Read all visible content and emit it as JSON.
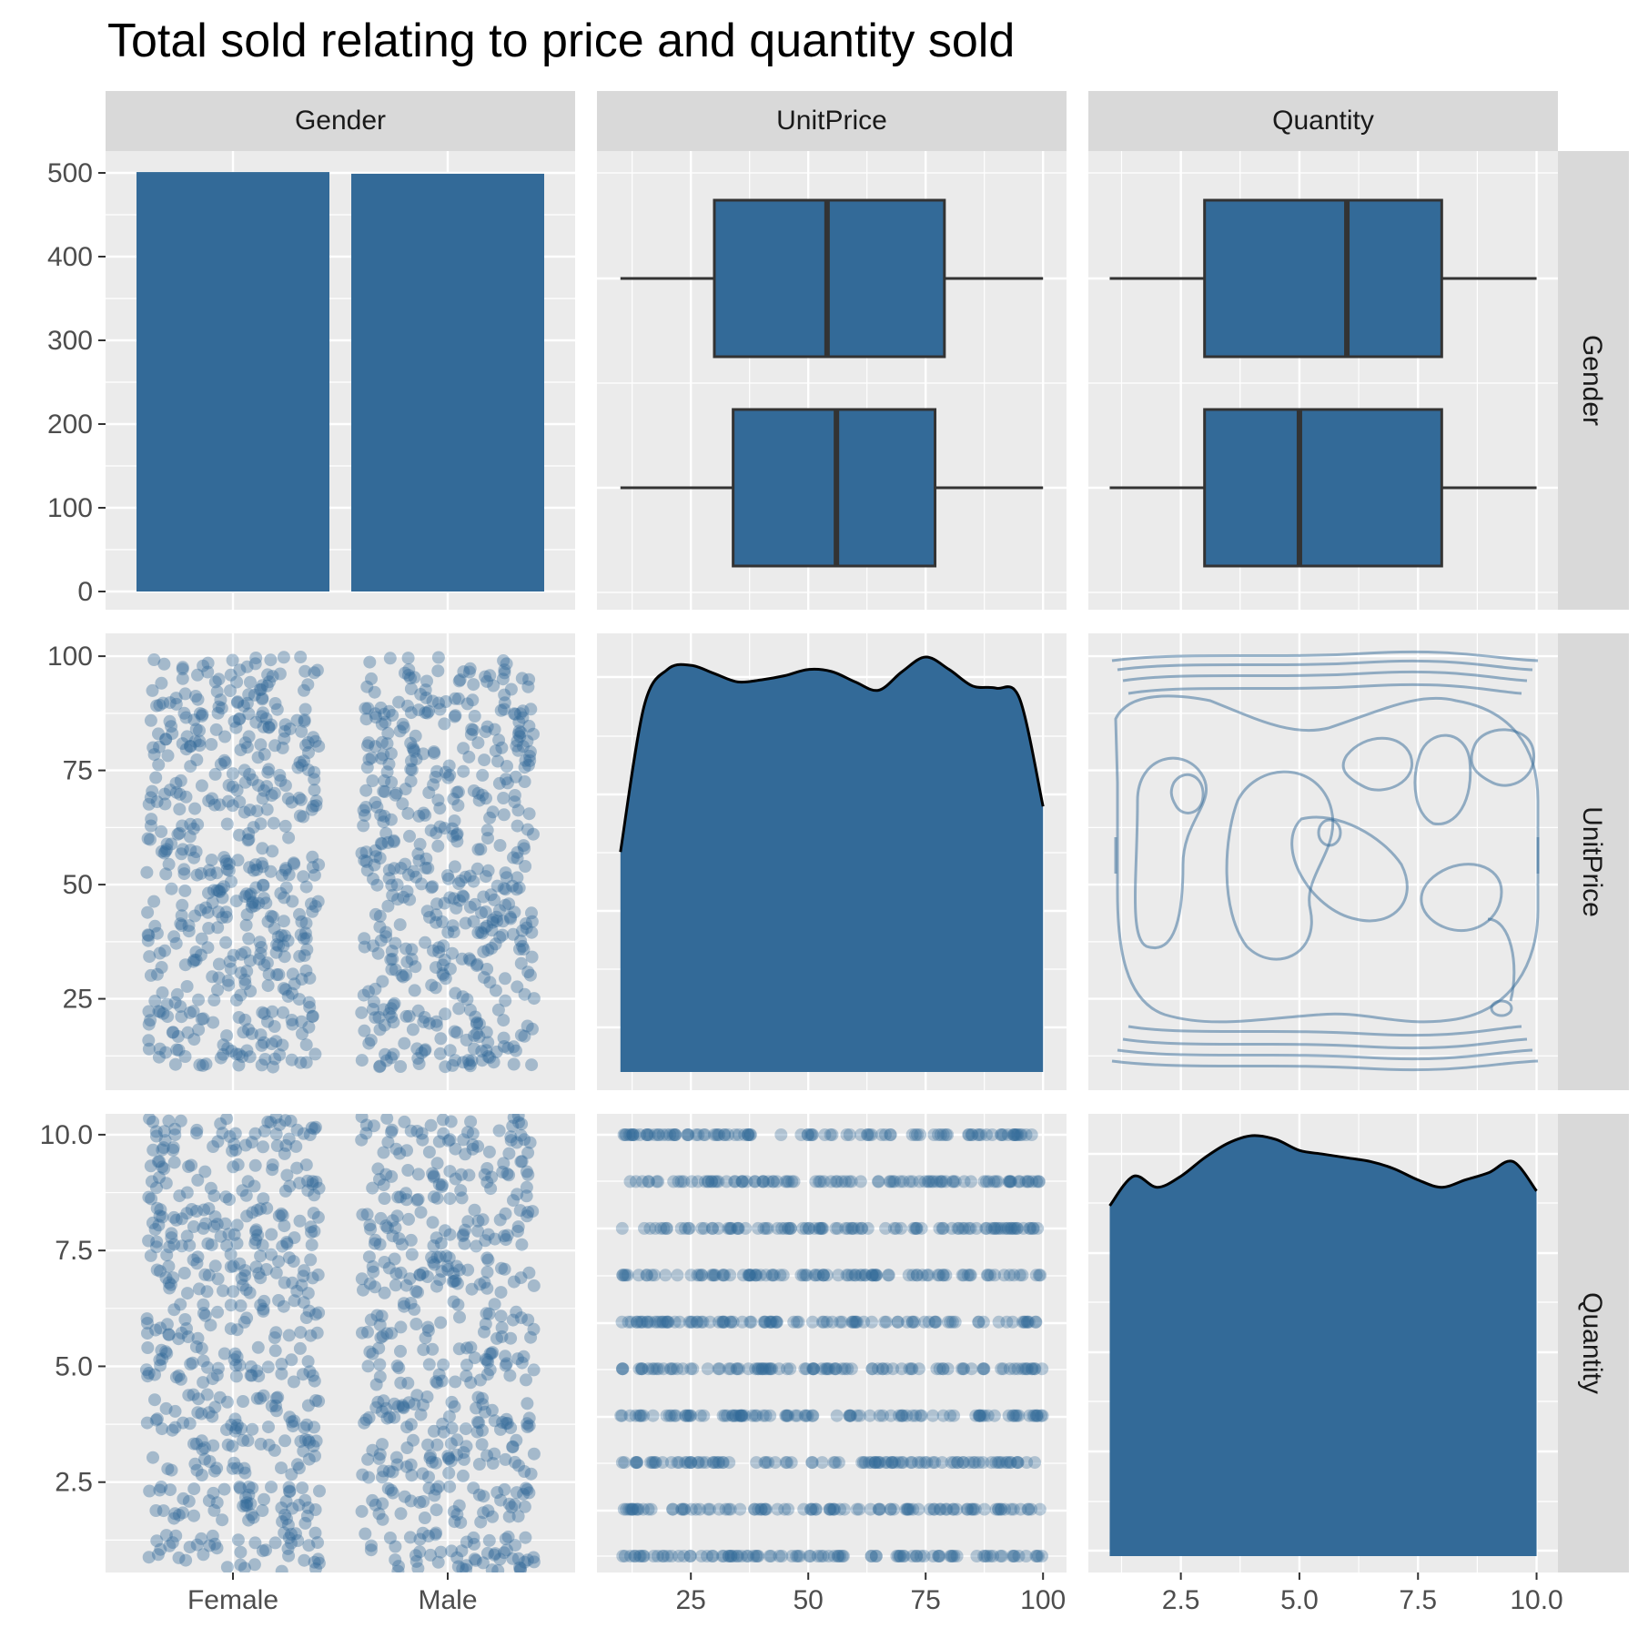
{
  "title": "Total sold relating to price and quantity sold",
  "variables": [
    "Gender",
    "UnitPrice",
    "Quantity"
  ],
  "colors": {
    "fill": "#336a98",
    "panel_bg": "#ebebeb",
    "strip_bg": "#d9d9d9",
    "grid": "#ffffff",
    "box_line": "#333333",
    "density_line": "#000000",
    "tick_text": "#4d4d4d"
  },
  "chart_data": [
    {
      "type": "bar",
      "panel": "Gender vs Gender",
      "categories": [
        "Female",
        "Male"
      ],
      "values": [
        501,
        499
      ],
      "yticks": [
        "0",
        "100",
        "200",
        "300",
        "400",
        "500"
      ],
      "ylim": [
        0,
        525
      ]
    },
    {
      "type": "boxplot",
      "panel": "UnitPrice by Gender",
      "series": [
        {
          "name": "Female",
          "min": 10,
          "q1": 34,
          "median": 56,
          "q3": 77,
          "max": 100
        },
        {
          "name": "Male",
          "min": 10,
          "q1": 30,
          "median": 54,
          "q3": 79,
          "max": 100
        }
      ],
      "xlim": [
        5,
        105
      ]
    },
    {
      "type": "boxplot",
      "panel": "Quantity by Gender",
      "series": [
        {
          "name": "Female",
          "min": 1,
          "q1": 3,
          "median": 5,
          "q3": 8,
          "max": 10
        },
        {
          "name": "Male",
          "min": 1,
          "q1": 3,
          "median": 6,
          "q3": 8,
          "max": 10
        }
      ],
      "xlim": [
        0.55,
        10.45
      ]
    },
    {
      "type": "scatter",
      "panel": "UnitPrice by Gender (jitter)",
      "categories": [
        "Female",
        "Male"
      ],
      "ylim": [
        5,
        105
      ],
      "yticks": [
        "25",
        "50",
        "75",
        "100"
      ],
      "n_points": [
        501,
        499
      ]
    },
    {
      "type": "area",
      "panel": "UnitPrice density",
      "x": [
        10,
        15,
        20,
        25,
        30,
        35,
        40,
        45,
        50,
        55,
        60,
        65,
        70,
        75,
        80,
        85,
        90,
        95,
        100
      ],
      "y": [
        0.53,
        0.88,
        0.97,
        0.98,
        0.96,
        0.94,
        0.945,
        0.955,
        0.97,
        0.965,
        0.94,
        0.92,
        0.965,
        1.0,
        0.97,
        0.93,
        0.925,
        0.9,
        0.64
      ],
      "xlim": [
        5,
        105
      ]
    },
    {
      "type": "contour",
      "panel": "UnitPrice vs Quantity density contours",
      "xlim": [
        0.55,
        10.45
      ],
      "ylim": [
        5,
        105
      ]
    },
    {
      "type": "scatter",
      "panel": "Quantity by Gender (jitter)",
      "categories": [
        "Female",
        "Male"
      ],
      "ylim": [
        0.55,
        10.45
      ],
      "yticks": [
        "2.5",
        "5.0",
        "7.5",
        "10.0"
      ],
      "n_points": [
        501,
        499
      ],
      "xticks": [
        "Female",
        "Male"
      ]
    },
    {
      "type": "scatter",
      "panel": "Quantity vs UnitPrice",
      "xlim": [
        5,
        105
      ],
      "ylim": [
        0.55,
        10.45
      ],
      "xticks": [
        "25",
        "50",
        "75",
        "100"
      ]
    },
    {
      "type": "area",
      "panel": "Quantity density",
      "x": [
        1,
        1.5,
        2,
        2.5,
        3,
        3.5,
        4,
        4.5,
        5,
        5.5,
        6,
        6.5,
        7,
        7.5,
        8,
        8.5,
        9,
        9.5,
        10
      ],
      "y": [
        0.95,
        1.03,
        1.0,
        1.03,
        1.08,
        1.12,
        1.14,
        1.13,
        1.1,
        1.09,
        1.08,
        1.07,
        1.05,
        1.02,
        1.0,
        1.02,
        1.04,
        1.07,
        0.99
      ],
      "xlim": [
        0.55,
        10.45
      ],
      "xticks": [
        "2.5",
        "5.0",
        "7.5",
        "10.0"
      ]
    }
  ]
}
